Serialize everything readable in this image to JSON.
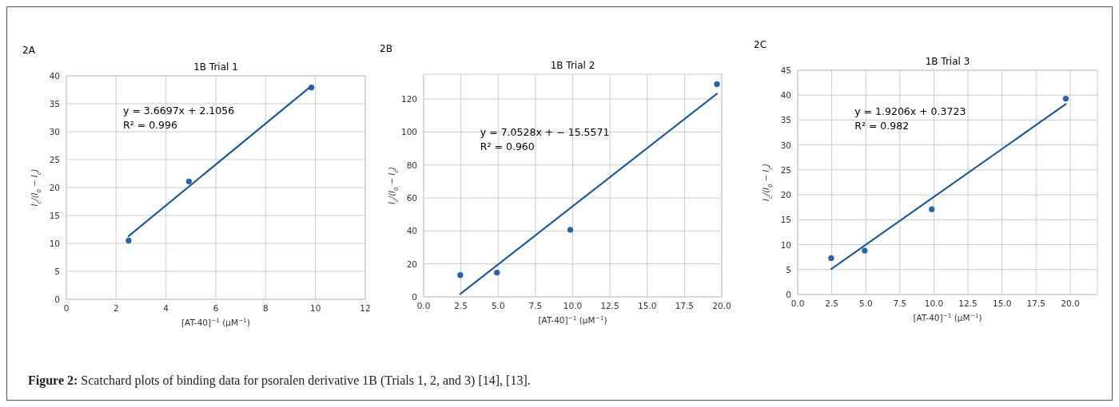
{
  "chart_data": [
    {
      "type": "scatter",
      "title": "1B Trial 1",
      "xlabel": "[AT-40]$^{−1}$ (μM$^{−1}$)",
      "ylabel": "I$_{c}$/(I$_{0}$ − I$_{c}$)",
      "annotations": [
        "2A",
        "y = 3.6697x + 2.1056",
        "R² = 0.996",
        "Figure 2: Scatchard plots of binding data for psoralen derivative 1B (Trials 1, 2, and 3) [14], [13]."
      ],
      "xlim": [
        0,
        12
      ],
      "xticks": [
        0,
        2,
        4,
        6,
        8,
        10,
        12
      ],
      "ylim": [
        0,
        40
      ],
      "yticks": [
        0,
        5,
        10,
        15,
        20,
        25,
        30,
        35,
        40
      ],
      "grid": true,
      "series": [
        {
          "marker": "circle",
          "color": "#2a64a6",
          "x": [
            2.5,
            4.92,
            9.84
          ],
          "values": [
            10.5,
            21.1,
            37.9
          ]
        },
        {
          "type": "line",
          "color": "#1f5a9c",
          "x": [
            2.5,
            9.84
          ],
          "values": [
            11.3,
            38.2
          ]
        }
      ]
    },
    {
      "type": "scatter",
      "title": "1B Trial 2",
      "xlabel": "[AT-40]$^{−1}$ (μM$^{−1}$)",
      "ylabel": "I$_{c}$/(I$_{0}$ − I$_{c}$)",
      "annotations": [
        "2B",
        "y = 7.0528x + − 15.5571",
        "R² = 0.960"
      ],
      "xlim": [
        0,
        20
      ],
      "xticks": [
        {
          "value": 0,
          "label": "0.0"
        },
        2.5,
        {
          "value": 5,
          "label": "5.0"
        },
        7.5,
        {
          "value": 10,
          "label": "10.0"
        },
        12.5,
        {
          "value": 15,
          "label": "15.0"
        },
        17.5,
        {
          "value": 20,
          "label": "20.0"
        }
      ],
      "ylim": [
        0,
        135
      ],
      "yticks": [
        0,
        20,
        40,
        60,
        80,
        100,
        120
      ],
      "grid": true,
      "series": [
        {
          "marker": "circle",
          "color": "#2a64a6",
          "x": [
            2.46,
            4.92,
            9.84,
            19.68
          ],
          "values": [
            13.2,
            14.7,
            40.7,
            129
          ]
        },
        {
          "type": "line",
          "color": "#1f5a9c",
          "x": [
            2.46,
            19.68
          ],
          "values": [
            1.8,
            123.2
          ]
        }
      ]
    },
    {
      "type": "scatter",
      "title": "1B Trial 3",
      "xlabel": "[AT-40]$^{−1}$ (μM$^{−1}$)",
      "ylabel": "I$_{c}$/(I$_{0}$ − I$_{c}$)",
      "annotations": [
        "2C",
        "y = 1.9206x + 0.3723",
        "R² = 0.982"
      ],
      "xlim": [
        0,
        22
      ],
      "xticks": [
        {
          "value": 0,
          "label": "0.0"
        },
        2.5,
        {
          "value": 5,
          "label": "5.0"
        },
        7.5,
        {
          "value": 10,
          "label": "10.0"
        },
        12.5,
        {
          "value": 15,
          "label": "15.0"
        },
        17.5,
        {
          "value": 20,
          "label": "20.0"
        }
      ],
      "ylim": [
        0,
        45
      ],
      "yticks": [
        0,
        5,
        10,
        15,
        20,
        25,
        30,
        35,
        40,
        45
      ],
      "grid": true,
      "series": [
        {
          "marker": "circle",
          "color": "#2a64a6",
          "x": [
            2.46,
            4.92,
            9.84,
            19.68
          ],
          "values": [
            7.3,
            8.8,
            17.1,
            39.3
          ]
        },
        {
          "type": "line",
          "color": "#1f5a9c",
          "x": [
            2.46,
            19.68
          ],
          "values": [
            5.1,
            38.2
          ]
        }
      ]
    }
  ]
}
